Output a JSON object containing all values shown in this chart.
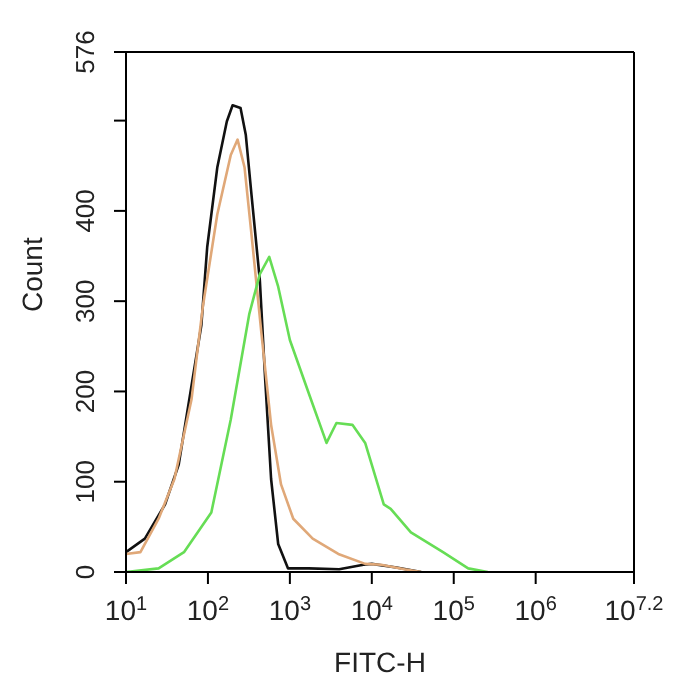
{
  "chart_data": {
    "type": "line",
    "xlabel": "FITC-H",
    "ylabel": "Count",
    "log": "x",
    "xlim": [
      10,
      15848932
    ],
    "ylim": [
      0,
      576
    ],
    "xticks": [
      {
        "value": 10,
        "label": "10$^{1}$"
      },
      {
        "value": 100,
        "label": "10$^{2}$"
      },
      {
        "value": 1000,
        "label": "10$^{3}$"
      },
      {
        "value": 10000,
        "label": "10$^{4}$"
      },
      {
        "value": 100000,
        "label": "10$^{5}$"
      },
      {
        "value": 1000000,
        "label": "10$^{6}$"
      },
      {
        "value": 15848932,
        "label": "10$^{7.2}$"
      }
    ],
    "yticks": [
      0,
      100,
      200,
      300,
      400,
      {
        "value": 500,
        "label": null
      },
      576
    ],
    "series": [
      {
        "color": "#111111",
        "x": [
          10,
          17,
          30,
          44,
          83,
          98,
          130,
          170,
          200,
          250,
          290,
          340,
          430,
          500,
          590,
          720,
          950,
          1700,
          4000,
          7900,
          10000,
          20000,
          40000
        ],
        "values": [
          22,
          37,
          75,
          119,
          273,
          360,
          448,
          499,
          517,
          514,
          484,
          418,
          323,
          213,
          103,
          31,
          4,
          4,
          3,
          8,
          9,
          5,
          0
        ]
      },
      {
        "color": "#e0a878",
        "x": [
          10,
          15,
          25,
          39,
          63,
          87,
          130,
          190,
          230,
          280,
          340,
          450,
          590,
          780,
          1100,
          1900,
          3900,
          8300,
          13000,
          25000,
          40000
        ],
        "values": [
          20,
          22,
          59,
          103,
          191,
          295,
          396,
          462,
          479,
          448,
          374,
          264,
          163,
          97,
          59,
          37,
          20,
          9,
          8,
          3,
          0
        ]
      },
      {
        "color": "#66dd55",
        "x": [
          10,
          25,
          51,
          110,
          190,
          320,
          430,
          560,
          720,
          1000,
          1700,
          2800,
          3700,
          5800,
          8300,
          14000,
          17000,
          30000,
          74000,
          150000,
          260000
        ],
        "values": [
          0,
          4,
          22,
          66,
          169,
          286,
          330,
          349,
          316,
          257,
          198,
          143,
          165,
          163,
          143,
          75,
          70,
          44,
          22,
          4,
          0
        ]
      }
    ]
  }
}
